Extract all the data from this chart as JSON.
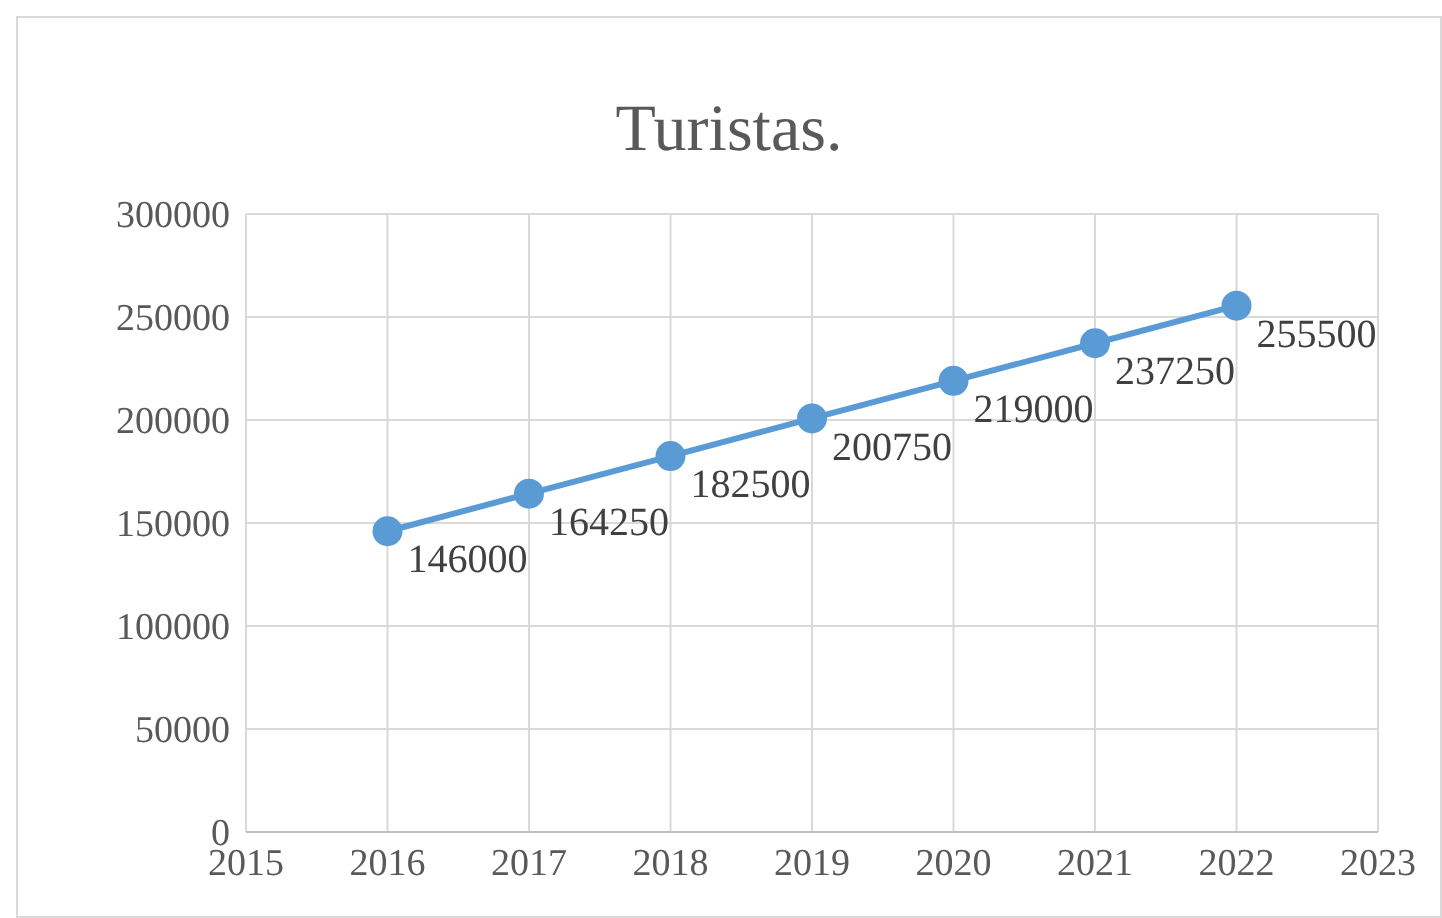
{
  "chart_data": {
    "type": "line",
    "title": "Turistas.",
    "x": [
      2016,
      2017,
      2018,
      2019,
      2020,
      2021,
      2022
    ],
    "series": [
      {
        "color": "#5b9bd5",
        "values": [
          146000,
          164250,
          182500,
          200750,
          219000,
          237250,
          255500
        ]
      }
    ],
    "xlim": [
      2015,
      2023
    ],
    "xticks": [
      2015,
      2016,
      2017,
      2018,
      2019,
      2020,
      2021,
      2022,
      2023
    ],
    "ylim": [
      0,
      300000
    ],
    "yticks": [
      0,
      50000,
      100000,
      150000,
      200000,
      250000,
      300000
    ],
    "grid": true,
    "marker": "circle",
    "line_style": "solid",
    "data_labels": true
  }
}
